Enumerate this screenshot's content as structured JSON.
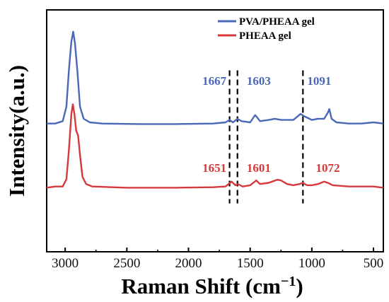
{
  "chart_data": {
    "type": "line",
    "xlabel": "Raman Shift (cm",
    "xlabel_sup": "−1",
    "xlabel_end": ")",
    "ylabel": "Intensity(a.u.)",
    "xlim": [
      3150,
      420
    ],
    "x_reversed": true,
    "x_ticks": [
      3000,
      2500,
      2000,
      1500,
      1000,
      500
    ],
    "x_tick_labels": [
      "3000",
      "2500",
      "2000",
      "1500",
      "1000",
      "500"
    ],
    "y_ticks_shown": false,
    "legend_position": "top-right",
    "series": [
      {
        "name": "PVA/PHEAA gel",
        "color": "#4a68b8",
        "points": [
          [
            3150,
            0.53
          ],
          [
            3080,
            0.53
          ],
          [
            3020,
            0.54
          ],
          [
            2990,
            0.6
          ],
          [
            2970,
            0.75
          ],
          [
            2950,
            0.87
          ],
          [
            2935,
            0.91
          ],
          [
            2920,
            0.86
          ],
          [
            2900,
            0.74
          ],
          [
            2880,
            0.6
          ],
          [
            2850,
            0.55
          ],
          [
            2800,
            0.535
          ],
          [
            2700,
            0.53
          ],
          [
            2400,
            0.528
          ],
          [
            2100,
            0.528
          ],
          [
            1800,
            0.53
          ],
          [
            1700,
            0.535
          ],
          [
            1667,
            0.545
          ],
          [
            1640,
            0.535
          ],
          [
            1603,
            0.55
          ],
          [
            1570,
            0.54
          ],
          [
            1500,
            0.535
          ],
          [
            1460,
            0.565
          ],
          [
            1450,
            0.56
          ],
          [
            1420,
            0.54
          ],
          [
            1350,
            0.545
          ],
          [
            1300,
            0.55
          ],
          [
            1250,
            0.545
          ],
          [
            1150,
            0.545
          ],
          [
            1091,
            0.57
          ],
          [
            1060,
            0.56
          ],
          [
            1000,
            0.545
          ],
          [
            950,
            0.55
          ],
          [
            900,
            0.55
          ],
          [
            870,
            0.575
          ],
          [
            858,
            0.59
          ],
          [
            840,
            0.55
          ],
          [
            800,
            0.535
          ],
          [
            700,
            0.53
          ],
          [
            600,
            0.53
          ],
          [
            500,
            0.535
          ],
          [
            420,
            0.53
          ]
        ]
      },
      {
        "name": "PHEAA gel",
        "color": "#d6393b",
        "points": [
          [
            3150,
            0.265
          ],
          [
            3080,
            0.27
          ],
          [
            3020,
            0.27
          ],
          [
            2990,
            0.3
          ],
          [
            2970,
            0.42
          ],
          [
            2950,
            0.57
          ],
          [
            2938,
            0.61
          ],
          [
            2925,
            0.57
          ],
          [
            2910,
            0.5
          ],
          [
            2895,
            0.48
          ],
          [
            2880,
            0.4
          ],
          [
            2860,
            0.31
          ],
          [
            2830,
            0.28
          ],
          [
            2780,
            0.27
          ],
          [
            2500,
            0.265
          ],
          [
            2100,
            0.265
          ],
          [
            1800,
            0.267
          ],
          [
            1700,
            0.27
          ],
          [
            1651,
            0.29
          ],
          [
            1620,
            0.275
          ],
          [
            1601,
            0.28
          ],
          [
            1560,
            0.27
          ],
          [
            1500,
            0.275
          ],
          [
            1450,
            0.295
          ],
          [
            1420,
            0.28
          ],
          [
            1350,
            0.285
          ],
          [
            1280,
            0.298
          ],
          [
            1250,
            0.295
          ],
          [
            1200,
            0.28
          ],
          [
            1150,
            0.275
          ],
          [
            1100,
            0.28
          ],
          [
            1072,
            0.285
          ],
          [
            1040,
            0.275
          ],
          [
            1000,
            0.275
          ],
          [
            950,
            0.28
          ],
          [
            900,
            0.29
          ],
          [
            870,
            0.285
          ],
          [
            830,
            0.275
          ],
          [
            700,
            0.27
          ],
          [
            600,
            0.27
          ],
          [
            500,
            0.27
          ],
          [
            420,
            0.265
          ]
        ]
      }
    ],
    "reference_lines_x": [
      1667,
      1603,
      1072
    ],
    "annotations": [
      {
        "text": "1667",
        "series": 0,
        "x": 1790,
        "y": 0.69
      },
      {
        "text": "1603",
        "series": 0,
        "x": 1430,
        "y": 0.69
      },
      {
        "text": "1091",
        "series": 0,
        "x": 940,
        "y": 0.69
      },
      {
        "text": "1651",
        "series": 1,
        "x": 1790,
        "y": 0.33
      },
      {
        "text": "1601",
        "series": 1,
        "x": 1430,
        "y": 0.33
      },
      {
        "text": "1072",
        "series": 1,
        "x": 870,
        "y": 0.33
      }
    ]
  }
}
